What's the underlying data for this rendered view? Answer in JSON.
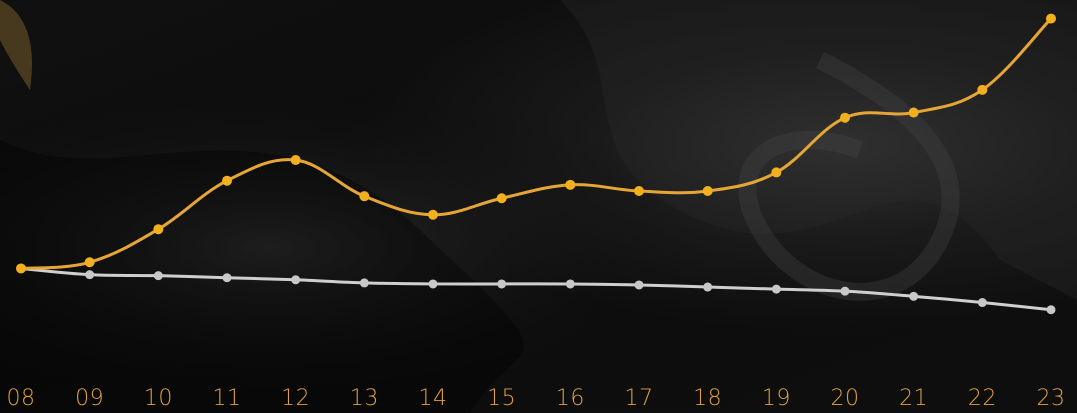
{
  "chart_data": {
    "type": "line",
    "x": [
      "08",
      "09",
      "10",
      "11",
      "12",
      "13",
      "14",
      "15",
      "16",
      "17",
      "18",
      "19",
      "20",
      "21",
      "22",
      "23"
    ],
    "series": [
      {
        "color": "#f2b01e",
        "line_color": "#e6a636",
        "values": [
          0.0,
          0.6,
          3.8,
          8.5,
          10.5,
          7.0,
          5.2,
          6.8,
          8.1,
          7.5,
          7.5,
          9.3,
          14.6,
          15.1,
          17.3,
          24.2
        ]
      },
      {
        "color": "#c8c8c8",
        "line_color": "#cfcfcf",
        "values": [
          0.0,
          -0.6,
          -0.7,
          -0.9,
          -1.1,
          -1.4,
          -1.5,
          -1.5,
          -1.5,
          -1.6,
          -1.8,
          -2.0,
          -2.2,
          -2.7,
          -3.3,
          -4.0
        ]
      }
    ],
    "ylim": [
      -14.0,
      26.0
    ],
    "grid": false,
    "legend": "none",
    "tick_label_color": "#e0a23a"
  }
}
